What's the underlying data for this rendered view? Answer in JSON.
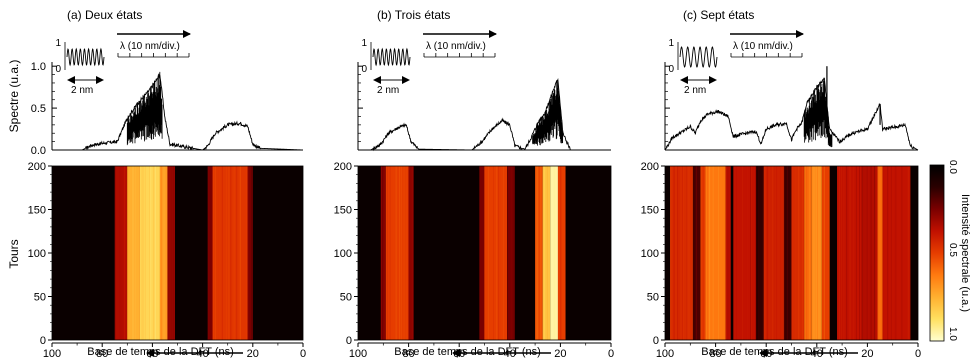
{
  "chart_data": [
    {
      "panel_label": "(a) Deux états",
      "type": "line",
      "ylabel": "Spectre (u.a.)",
      "yticks": [
        "0.0",
        "0.5",
        "1.0"
      ],
      "ylim": [
        0,
        1.05
      ],
      "xlim": [
        100,
        0
      ],
      "x_reversed": true,
      "wavelength_scale_label": "λ (10 nm/div.)",
      "inset_scale_label": "2 nm",
      "inset_ticks": [
        "0",
        "1"
      ],
      "spectrum_envelope": [
        {
          "x": 100,
          "y": 0.0
        },
        {
          "x": 88,
          "y": 0.0
        },
        {
          "x": 84,
          "y": 0.06
        },
        {
          "x": 80,
          "y": 0.08
        },
        {
          "x": 74,
          "y": 0.1
        },
        {
          "x": 70,
          "y": 0.38
        },
        {
          "x": 66,
          "y": 0.55
        },
        {
          "x": 61,
          "y": 0.72
        },
        {
          "x": 57,
          "y": 0.9
        },
        {
          "x": 55,
          "y": 0.38
        },
        {
          "x": 53,
          "y": 0.07
        },
        {
          "x": 40,
          "y": 0.0
        },
        {
          "x": 38,
          "y": 0.05
        },
        {
          "x": 35,
          "y": 0.2
        },
        {
          "x": 30,
          "y": 0.3
        },
        {
          "x": 25,
          "y": 0.32
        },
        {
          "x": 22,
          "y": 0.28
        },
        {
          "x": 20,
          "y": 0.07
        },
        {
          "x": 17,
          "y": 0.02
        },
        {
          "x": 0,
          "y": 0.0
        }
      ],
      "noisy_band": [
        56,
        70
      ],
      "heatmap_bands": [
        {
          "from": 75,
          "to": 70,
          "level": 0.35
        },
        {
          "from": 70,
          "to": 65,
          "level": 0.75
        },
        {
          "from": 65,
          "to": 57,
          "level": 0.85
        },
        {
          "from": 57,
          "to": 54,
          "level": 0.7
        },
        {
          "from": 54,
          "to": 51,
          "level": 0.3
        },
        {
          "from": 38,
          "to": 36,
          "level": 0.25
        },
        {
          "from": 36,
          "to": 22,
          "level": 0.48
        },
        {
          "from": 22,
          "to": 20,
          "level": 0.25
        }
      ]
    },
    {
      "panel_label": "(b) Trois états",
      "type": "line",
      "xlim": [
        100,
        0
      ],
      "x_reversed": true,
      "wavelength_scale_label": "λ (10 nm/div.)",
      "inset_scale_label": "2 nm",
      "inset_ticks": [
        "0",
        "1"
      ],
      "spectrum_envelope": [
        {
          "x": 100,
          "y": 0.0
        },
        {
          "x": 95,
          "y": 0.0
        },
        {
          "x": 91,
          "y": 0.07
        },
        {
          "x": 88,
          "y": 0.2
        },
        {
          "x": 84,
          "y": 0.27
        },
        {
          "x": 81,
          "y": 0.3
        },
        {
          "x": 79,
          "y": 0.1
        },
        {
          "x": 76,
          "y": 0.01
        },
        {
          "x": 55,
          "y": 0.0
        },
        {
          "x": 51,
          "y": 0.1
        },
        {
          "x": 47,
          "y": 0.25
        },
        {
          "x": 43,
          "y": 0.35
        },
        {
          "x": 40,
          "y": 0.3
        },
        {
          "x": 38,
          "y": 0.05
        },
        {
          "x": 34,
          "y": 0.01
        },
        {
          "x": 32,
          "y": 0.12
        },
        {
          "x": 29,
          "y": 0.32
        },
        {
          "x": 26,
          "y": 0.45
        },
        {
          "x": 23,
          "y": 0.7
        },
        {
          "x": 21,
          "y": 0.85
        },
        {
          "x": 19,
          "y": 0.2
        },
        {
          "x": 16,
          "y": 0.0
        },
        {
          "x": 0,
          "y": 0.0
        }
      ],
      "noisy_band": [
        19,
        31
      ],
      "heatmap_bands": [
        {
          "from": 91,
          "to": 89,
          "level": 0.28
        },
        {
          "from": 89,
          "to": 80,
          "level": 0.5
        },
        {
          "from": 80,
          "to": 78,
          "level": 0.28
        },
        {
          "from": 52,
          "to": 50,
          "level": 0.25
        },
        {
          "from": 50,
          "to": 41,
          "level": 0.5
        },
        {
          "from": 41,
          "to": 38,
          "level": 0.25
        },
        {
          "from": 30,
          "to": 27,
          "level": 0.55
        },
        {
          "from": 27,
          "to": 24,
          "level": 0.8
        },
        {
          "from": 24,
          "to": 21,
          "level": 0.95
        },
        {
          "from": 21,
          "to": 18,
          "level": 0.5
        }
      ]
    },
    {
      "panel_label": "(c) Sept états",
      "type": "line",
      "xlim": [
        100,
        0
      ],
      "x_reversed": true,
      "wavelength_scale_label": "λ (10 nm/div.)",
      "inset_scale_label": "2 nm",
      "inset_ticks": [
        "0",
        "1"
      ],
      "spectrum_envelope": [
        {
          "x": 100,
          "y": 0.0
        },
        {
          "x": 97,
          "y": 0.15
        },
        {
          "x": 93,
          "y": 0.22
        },
        {
          "x": 90,
          "y": 0.28
        },
        {
          "x": 88,
          "y": 0.2
        },
        {
          "x": 86,
          "y": 0.35
        },
        {
          "x": 83,
          "y": 0.43
        },
        {
          "x": 79,
          "y": 0.46
        },
        {
          "x": 75,
          "y": 0.4
        },
        {
          "x": 73,
          "y": 0.16
        },
        {
          "x": 68,
          "y": 0.2
        },
        {
          "x": 64,
          "y": 0.22
        },
        {
          "x": 62,
          "y": 0.07
        },
        {
          "x": 60,
          "y": 0.25
        },
        {
          "x": 56,
          "y": 0.3
        },
        {
          "x": 52,
          "y": 0.32
        },
        {
          "x": 50,
          "y": 0.12
        },
        {
          "x": 48,
          "y": 0.25
        },
        {
          "x": 46,
          "y": 0.32
        },
        {
          "x": 44,
          "y": 0.55
        },
        {
          "x": 40,
          "y": 0.75
        },
        {
          "x": 37,
          "y": 0.85
        },
        {
          "x": 35,
          "y": 0.25
        },
        {
          "x": 31,
          "y": 0.1
        },
        {
          "x": 26,
          "y": 0.2
        },
        {
          "x": 20,
          "y": 0.25
        },
        {
          "x": 15,
          "y": 0.55
        },
        {
          "x": 14,
          "y": 0.25
        },
        {
          "x": 8,
          "y": 0.28
        },
        {
          "x": 5,
          "y": 0.3
        },
        {
          "x": 3,
          "y": 0.05
        },
        {
          "x": 0,
          "y": 0.0
        }
      ],
      "noisy_band": [
        34,
        45
      ],
      "spikes": [
        {
          "x": 36,
          "y": 1.0
        },
        {
          "x": 15,
          "y": 0.55
        }
      ],
      "heatmap_bands": [
        {
          "from": 98,
          "to": 89,
          "level": 0.45
        },
        {
          "from": 89,
          "to": 86,
          "level": 0.18
        },
        {
          "from": 86,
          "to": 84,
          "level": 0.5
        },
        {
          "from": 84,
          "to": 76,
          "level": 0.62
        },
        {
          "from": 76,
          "to": 74,
          "level": 0.35
        },
        {
          "from": 73,
          "to": 64,
          "level": 0.38
        },
        {
          "from": 64,
          "to": 61,
          "level": 0.15
        },
        {
          "from": 61,
          "to": 53,
          "level": 0.42
        },
        {
          "from": 53,
          "to": 50,
          "level": 0.15
        },
        {
          "from": 50,
          "to": 45,
          "level": 0.45
        },
        {
          "from": 45,
          "to": 42,
          "level": 0.6
        },
        {
          "from": 42,
          "to": 38,
          "level": 0.68
        },
        {
          "from": 38,
          "to": 35,
          "level": 0.5
        },
        {
          "from": 32,
          "to": 22,
          "level": 0.38
        },
        {
          "from": 22,
          "to": 16,
          "level": 0.35
        },
        {
          "from": 16,
          "to": 14,
          "level": 0.6
        },
        {
          "from": 14,
          "to": 3,
          "level": 0.38
        }
      ]
    }
  ],
  "heatmap_axis": {
    "ylabel": "Tours",
    "yticks": [
      0,
      50,
      100,
      150,
      200
    ],
    "ylim": [
      0,
      200
    ]
  },
  "x_axis": {
    "label": "Base de temps de la DFT (ns)",
    "ticks": [
      100,
      80,
      60,
      40,
      20,
      0
    ]
  },
  "colorbar": {
    "label": "Intensité spectrale (u.a.)",
    "ticks": [
      "0.0",
      "0.5",
      "1.0"
    ],
    "colors": [
      "#000000",
      "#2a0000",
      "#7a0000",
      "#c01000",
      "#e63d00",
      "#ff7a10",
      "#ffb030",
      "#ffe060",
      "#ffffd0"
    ]
  }
}
